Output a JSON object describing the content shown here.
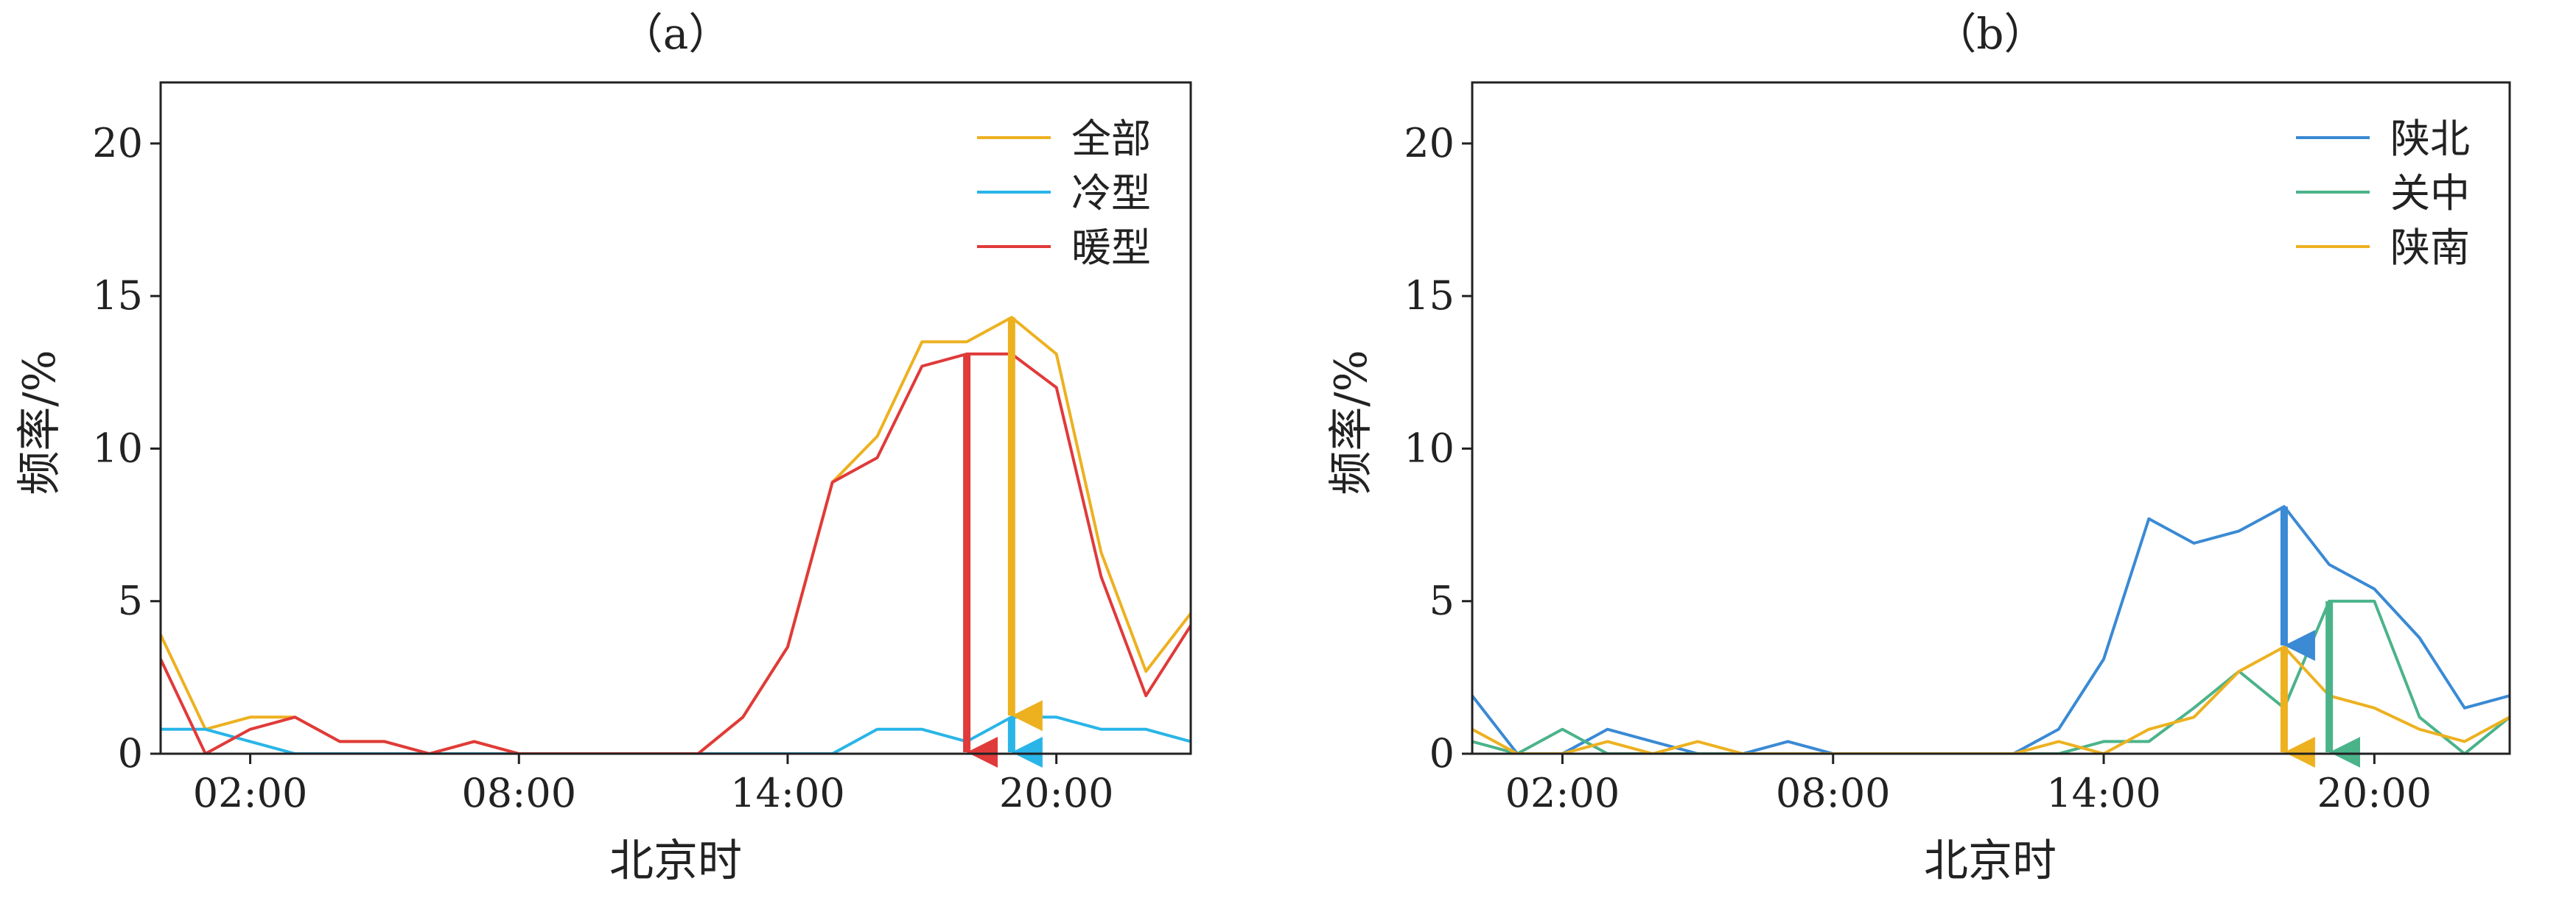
{
  "chart_data": [
    {
      "type": "line",
      "title": "（a）",
      "xlabel": "北京时",
      "ylabel": "频率/%",
      "xlim": [
        0,
        23
      ],
      "ylim": [
        0,
        22
      ],
      "xticks": [
        2,
        8,
        14,
        20
      ],
      "xtick_labels": [
        "02:00",
        "08:00",
        "14:00",
        "20:00"
      ],
      "yticks": [
        0,
        5,
        10,
        15,
        20
      ],
      "ytick_labels": [
        "0",
        "5",
        "10",
        "15",
        "20"
      ],
      "grid": false,
      "legend": "top-right",
      "x": [
        0,
        1,
        2,
        3,
        4,
        5,
        6,
        7,
        8,
        9,
        10,
        11,
        12,
        13,
        14,
        15,
        16,
        17,
        18,
        19,
        20,
        21,
        22,
        23
      ],
      "series": [
        {
          "name": "全部",
          "color": "#edb120",
          "values": [
            3.9,
            0.8,
            1.2,
            1.2,
            0.4,
            0.4,
            0,
            0.4,
            0,
            0,
            0,
            0,
            0,
            1.2,
            3.5,
            8.9,
            10.4,
            13.5,
            13.5,
            14.3,
            13.1,
            6.6,
            2.7,
            4.6
          ]
        },
        {
          "name": "冷型",
          "color": "#29b5e8",
          "values": [
            0.8,
            0.8,
            0.4,
            0,
            0,
            0,
            0,
            0,
            0,
            0,
            0,
            0,
            0,
            0,
            0,
            0,
            0.8,
            0.8,
            0.4,
            1.2,
            1.2,
            0.8,
            0.8,
            0.4
          ]
        },
        {
          "name": "暖型",
          "color": "#e03a3a",
          "values": [
            3.1,
            0,
            0.8,
            1.2,
            0.4,
            0.4,
            0,
            0.4,
            0,
            0,
            0,
            0,
            0,
            1.2,
            3.5,
            8.9,
            9.7,
            12.7,
            13.1,
            13.1,
            12.0,
            5.8,
            1.9,
            4.2
          ]
        }
      ],
      "arrows": [
        {
          "color": "#e03a3a",
          "x": 18,
          "from": 13.1,
          "to": 0
        },
        {
          "color": "#edb120",
          "x": 19,
          "from": 14.3,
          "to": 1.2
        },
        {
          "color": "#29b5e8",
          "x": 19,
          "from": 1.2,
          "to": 0
        }
      ]
    },
    {
      "type": "line",
      "title": "（b）",
      "xlabel": "北京时",
      "ylabel": "频率/%",
      "xlim": [
        0,
        23
      ],
      "ylim": [
        0,
        22
      ],
      "xticks": [
        2,
        8,
        14,
        20
      ],
      "xtick_labels": [
        "02:00",
        "08:00",
        "14:00",
        "20:00"
      ],
      "yticks": [
        0,
        5,
        10,
        15,
        20
      ],
      "ytick_labels": [
        "0",
        "5",
        "10",
        "15",
        "20"
      ],
      "grid": false,
      "legend": "top-right",
      "x": [
        0,
        1,
        2,
        3,
        4,
        5,
        6,
        7,
        8,
        9,
        10,
        11,
        12,
        13,
        14,
        15,
        16,
        17,
        18,
        19,
        20,
        21,
        22,
        23
      ],
      "series": [
        {
          "name": "陕北",
          "color": "#3a8ad4",
          "values": [
            1.9,
            0,
            0,
            0.8,
            0.4,
            0,
            0,
            0.4,
            0,
            0,
            0,
            0,
            0,
            0.8,
            3.1,
            7.7,
            6.9,
            7.3,
            8.1,
            6.2,
            5.4,
            3.8,
            1.5,
            1.9
          ]
        },
        {
          "name": "关中",
          "color": "#4bb38a",
          "values": [
            0.4,
            0,
            0.8,
            0,
            0,
            0,
            0,
            0,
            0,
            0,
            0,
            0,
            0,
            0,
            0.4,
            0.4,
            1.5,
            2.7,
            1.5,
            5.0,
            5.0,
            1.2,
            0,
            1.2
          ]
        },
        {
          "name": "陕南",
          "color": "#edb120",
          "values": [
            0.8,
            0,
            0,
            0.4,
            0,
            0.4,
            0,
            0,
            0,
            0,
            0,
            0,
            0,
            0.4,
            0,
            0.8,
            1.2,
            2.7,
            3.5,
            1.9,
            1.5,
            0.8,
            0.4,
            1.2
          ]
        }
      ],
      "arrows": [
        {
          "color": "#3a8ad4",
          "x": 18,
          "from": 8.1,
          "to": 3.5
        },
        {
          "color": "#edb120",
          "x": 18,
          "from": 3.5,
          "to": 0
        },
        {
          "color": "#4bb38a",
          "x": 19,
          "from": 5.0,
          "to": 0
        }
      ]
    }
  ]
}
